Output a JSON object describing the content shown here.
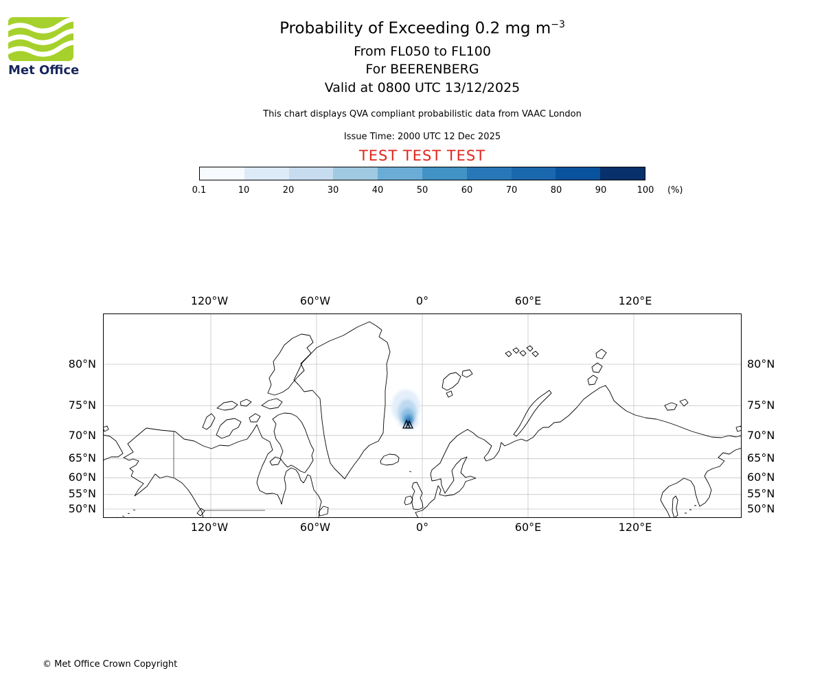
{
  "brand": {
    "logo_text": "Met Office",
    "logo_green": "#a6d12c",
    "logo_navy": "#17265c"
  },
  "header": {
    "title_main": "Probability of Exceeding 0.2 mg m",
    "title_superscript": "−3",
    "subtitle_flight_levels": "From FL050 to FL100",
    "subtitle_volcano": "For BEERENBERG",
    "subtitle_valid": "Valid at 0800 UTC 13/12/2025",
    "description": "This chart displays QVA compliant probabilistic data from VAAC London",
    "issue_time": "Issue Time: 2000 UTC 12 Dec 2025",
    "test_banner": "TEST TEST TEST",
    "test_color": "#e0251c"
  },
  "colorbar": {
    "tick_labels": [
      "0.1",
      "10",
      "20",
      "30",
      "40",
      "50",
      "60",
      "70",
      "80",
      "90",
      "100"
    ],
    "unit": "(%)",
    "segment_colors": [
      "#f7fbff",
      "#ddeaf7",
      "#c7dcef",
      "#9fcae1",
      "#6badd6",
      "#4292c6",
      "#2878b8",
      "#1b67ad",
      "#09529d",
      "#08306b"
    ]
  },
  "map": {
    "lon_labels": [
      "120°W",
      "60°W",
      "0°",
      "60°E",
      "120°E"
    ],
    "lat_labels": [
      "80°N",
      "75°N",
      "70°N",
      "65°N",
      "60°N",
      "55°N",
      "50°N"
    ],
    "volcano_marker": "black triangle pair at Jan Mayen (approx 8°W, 71°N)",
    "plume_colors": [
      "#e4effa",
      "#bcd9f1",
      "#8cc0e2",
      "#4996ca",
      "#1e6db3"
    ]
  },
  "footer": {
    "copyright": "© Met Office Crown Copyright"
  }
}
